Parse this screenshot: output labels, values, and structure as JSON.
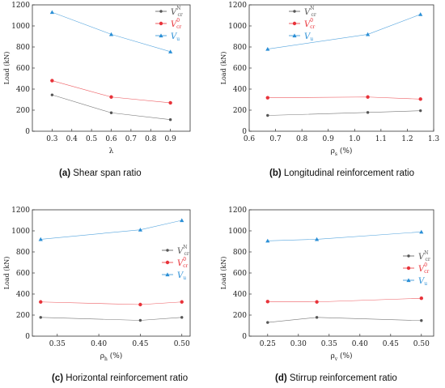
{
  "captions": [
    {
      "letter": "(a)",
      "text": "Shear span ratio"
    },
    {
      "letter": "(b)",
      "text": "Longitudinal reinforcement ratio"
    },
    {
      "letter": "(c)",
      "text": "Horizontal reinforcement ratio"
    },
    {
      "letter": "(d)",
      "text": "Stirrup reinforcement ratio"
    }
  ],
  "series_colors": {
    "Vcr_N": "#555555",
    "Vcr_0": "#e8333a",
    "Vu": "#2a8fd6"
  },
  "legend_names": [
    {
      "base": "V",
      "sup": "N",
      "sub": "cr"
    },
    {
      "base": "V",
      "sup": "0",
      "sub": "cr"
    },
    {
      "base": "V",
      "sup": "",
      "sub": "u"
    }
  ],
  "chart_data": [
    {
      "type": "line",
      "title": "",
      "ylabel": "Load (kN)",
      "xlabel": "λ",
      "xlim": [
        0.2,
        1.0
      ],
      "ylim": [
        0,
        1200
      ],
      "xticks": [
        "0.3",
        "0.4",
        "0.5",
        "0.6",
        "0.7",
        "0.8",
        "0.9"
      ],
      "yticks": [
        "0",
        "200",
        "400",
        "600",
        "800",
        "1000",
        "1200"
      ],
      "legend_position": "top-right",
      "x": [
        0.3,
        0.6,
        0.9
      ],
      "series": [
        {
          "key": "Vcr_N",
          "values": [
            345,
            175,
            110
          ]
        },
        {
          "key": "Vcr_0",
          "values": [
            480,
            325,
            270
          ]
        },
        {
          "key": "Vu",
          "values": [
            1130,
            920,
            755
          ]
        }
      ]
    },
    {
      "type": "line",
      "title": "",
      "ylabel": "Load (kN)",
      "xlabel": "ρs (%)",
      "xlim": [
        0.6,
        1.3
      ],
      "ylim": [
        0,
        1200
      ],
      "xticks": [
        "0.6",
        "0.7",
        "0.8",
        "0.9",
        "1.0",
        "1.1",
        "1.2",
        "1.3"
      ],
      "yticks": [
        "0",
        "200",
        "400",
        "600",
        "800",
        "1000",
        "1200"
      ],
      "legend_position": "top-left",
      "x": [
        0.67,
        1.05,
        1.25
      ],
      "series": [
        {
          "key": "Vcr_N",
          "values": [
            150,
            178,
            195
          ]
        },
        {
          "key": "Vcr_0",
          "values": [
            318,
            325,
            305
          ]
        },
        {
          "key": "Vu",
          "values": [
            780,
            920,
            1110
          ]
        }
      ]
    },
    {
      "type": "line",
      "title": "",
      "ylabel": "Load (kN)",
      "xlabel": "ρh (%)",
      "xlim": [
        0.32,
        0.51
      ],
      "ylim": [
        0,
        1200
      ],
      "xticks": [
        "0.35",
        "0.40",
        "0.45",
        "0.50"
      ],
      "yticks": [
        "0",
        "200",
        "400",
        "600",
        "800",
        "1000",
        "1200"
      ],
      "legend_position": "middle-right",
      "x": [
        0.33,
        0.45,
        0.5
      ],
      "series": [
        {
          "key": "Vcr_N",
          "values": [
            178,
            150,
            178
          ]
        },
        {
          "key": "Vcr_0",
          "values": [
            325,
            300,
            325
          ]
        },
        {
          "key": "Vu",
          "values": [
            920,
            1010,
            1100
          ]
        }
      ]
    },
    {
      "type": "line",
      "title": "",
      "ylabel": "Load (kN)",
      "xlabel": "ρv (%)",
      "xlim": [
        0.22,
        0.52
      ],
      "ylim": [
        0,
        1200
      ],
      "xticks": [
        "0.25",
        "0.30",
        "0.35",
        "0.40",
        "0.45",
        "0.50"
      ],
      "yticks": [
        "0",
        "200",
        "400",
        "600",
        "800",
        "1000",
        "1200"
      ],
      "legend_position": "middle-right",
      "x": [
        0.25,
        0.33,
        0.5
      ],
      "series": [
        {
          "key": "Vcr_N",
          "values": [
            130,
            178,
            148
          ]
        },
        {
          "key": "Vcr_0",
          "values": [
            328,
            325,
            360
          ]
        },
        {
          "key": "Vu",
          "values": [
            905,
            920,
            990
          ]
        }
      ]
    }
  ]
}
